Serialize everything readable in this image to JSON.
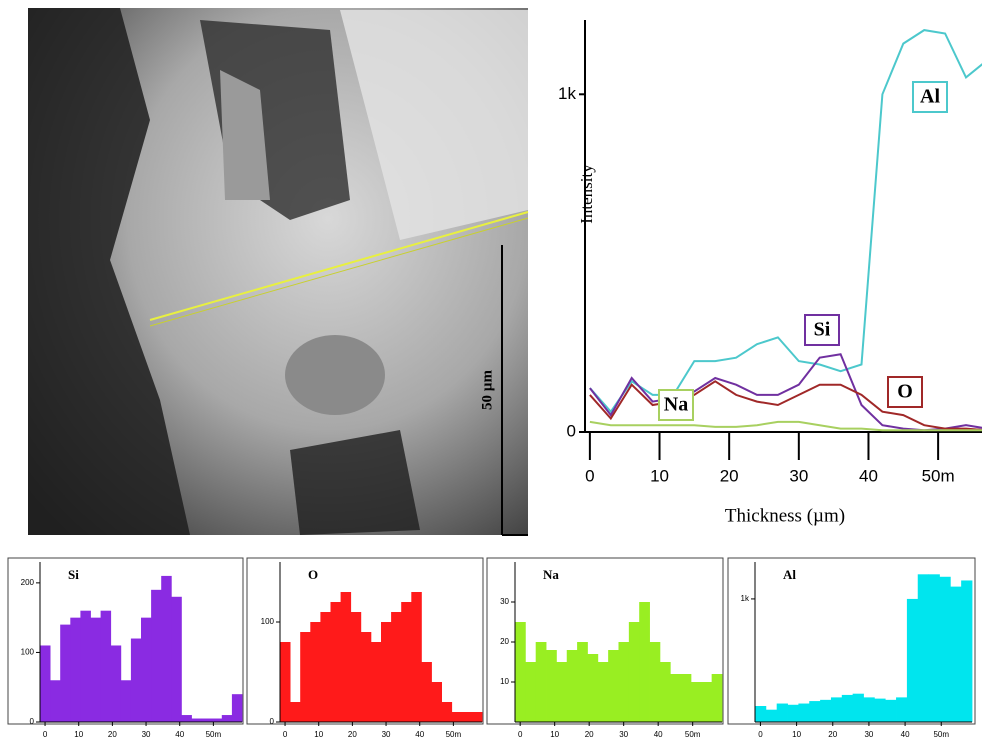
{
  "image": {
    "scale_bar_label": "50 µm"
  },
  "chart_data": [
    {
      "type": "line",
      "y_label": "Intensity",
      "x_label": "Thickness (µm)",
      "x": [
        0,
        3,
        6,
        9,
        12,
        15,
        18,
        21,
        24,
        27,
        30,
        33,
        36,
        39,
        42,
        45,
        48,
        51,
        54,
        57
      ],
      "xlim": [
        -0.7,
        56.3
      ],
      "xticks": [
        0,
        10,
        20,
        30,
        40,
        {
          "value": 50,
          "label": "50m"
        }
      ],
      "ylim": [
        0,
        1220
      ],
      "yticks": [
        0,
        {
          "value": 1000,
          "label": "1k"
        }
      ],
      "series": [
        {
          "name": "Al",
          "color": "#4cc8cc",
          "values": [
            130,
            60,
            150,
            110,
            110,
            210,
            210,
            220,
            260,
            280,
            210,
            200,
            180,
            200,
            1000,
            1150,
            1190,
            1180,
            1050,
            1100
          ]
        },
        {
          "name": "Si",
          "color": "#7030a0",
          "values": [
            130,
            50,
            160,
            90,
            100,
            120,
            160,
            140,
            110,
            110,
            140,
            220,
            230,
            80,
            20,
            10,
            5,
            10,
            20,
            10
          ]
        },
        {
          "name": "O",
          "color": "#a02828",
          "values": [
            110,
            40,
            140,
            80,
            90,
            110,
            150,
            110,
            90,
            80,
            110,
            140,
            140,
            110,
            60,
            50,
            20,
            10,
            10,
            5
          ]
        },
        {
          "name": "Na",
          "color": "#a8d060",
          "values": [
            30,
            20,
            20,
            20,
            20,
            20,
            15,
            15,
            20,
            30,
            30,
            20,
            10,
            10,
            5,
            5,
            5,
            5,
            5,
            5
          ]
        }
      ]
    },
    {
      "type": "bar",
      "title": "Si",
      "color": "#8a2be2",
      "x": [
        0,
        3,
        6,
        9,
        12,
        15,
        18,
        21,
        24,
        27,
        30,
        33,
        36,
        39,
        42,
        45,
        48,
        51,
        54,
        57
      ],
      "values": [
        110,
        60,
        140,
        150,
        160,
        150,
        160,
        110,
        60,
        120,
        150,
        190,
        210,
        180,
        10,
        5,
        5,
        5,
        10,
        40
      ],
      "xlim": [
        -1.5,
        58.5
      ],
      "xticks": [
        0,
        10,
        20,
        30,
        40,
        {
          "value": 50,
          "label": "50m"
        }
      ],
      "ylim": [
        0,
        230
      ],
      "yticks": [
        0,
        100,
        200
      ]
    },
    {
      "type": "bar",
      "title": "O",
      "color": "#ff1a1a",
      "x": [
        0,
        3,
        6,
        9,
        12,
        15,
        18,
        21,
        24,
        27,
        30,
        33,
        36,
        39,
        42,
        45,
        48,
        51,
        54,
        57
      ],
      "values": [
        80,
        20,
        90,
        100,
        110,
        120,
        130,
        110,
        90,
        80,
        100,
        110,
        120,
        130,
        60,
        40,
        20,
        10,
        10,
        10
      ],
      "xlim": [
        -1.5,
        58.5
      ],
      "xticks": [
        0,
        10,
        20,
        30,
        40,
        {
          "value": 50,
          "label": "50m"
        }
      ],
      "ylim": [
        0,
        160
      ],
      "yticks": [
        0,
        100
      ]
    },
    {
      "type": "bar",
      "title": "Na",
      "color": "#99ee22",
      "x": [
        0,
        3,
        6,
        9,
        12,
        15,
        18,
        21,
        24,
        27,
        30,
        33,
        36,
        39,
        42,
        45,
        48,
        51,
        54,
        57
      ],
      "values": [
        25,
        15,
        20,
        18,
        15,
        18,
        20,
        17,
        15,
        18,
        20,
        25,
        30,
        20,
        15,
        12,
        12,
        10,
        10,
        12
      ],
      "xlim": [
        -1.5,
        58.5
      ],
      "xticks": [
        0,
        10,
        20,
        30,
        40,
        {
          "value": 50,
          "label": "50m"
        }
      ],
      "ylim": [
        0,
        40
      ],
      "yticks": [
        10,
        20,
        30
      ]
    },
    {
      "type": "bar",
      "title": "Al",
      "color": "#00e5ee",
      "x": [
        0,
        3,
        6,
        9,
        12,
        15,
        18,
        21,
        24,
        27,
        30,
        33,
        36,
        39,
        42,
        45,
        48,
        51,
        54,
        57
      ],
      "values": [
        130,
        100,
        150,
        140,
        150,
        170,
        180,
        200,
        220,
        230,
        200,
        190,
        180,
        200,
        1000,
        1200,
        1200,
        1180,
        1100,
        1150
      ],
      "xlim": [
        -1.5,
        58.5
      ],
      "xticks": [
        0,
        10,
        20,
        30,
        40,
        {
          "value": 50,
          "label": "50m"
        }
      ],
      "ylim": [
        0,
        1300
      ],
      "yticks": [
        {
          "value": 1000,
          "label": "1k"
        }
      ]
    }
  ]
}
